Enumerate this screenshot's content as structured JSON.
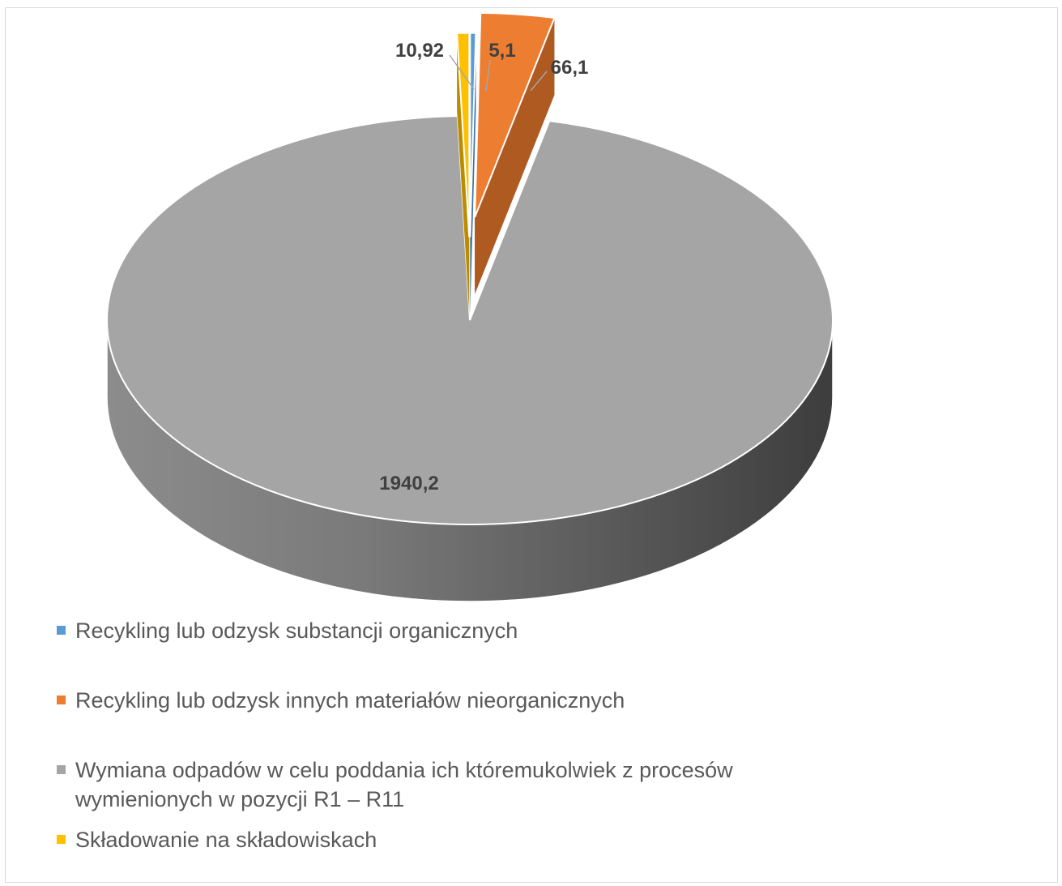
{
  "chart_data": {
    "type": "pie",
    "style": "3d-exploded",
    "categories": [
      "Recykling lub odzysk substancji organicznych",
      "Recykling lub odzysk innych materiałów nieorganicznych",
      "Wymiana odpadów w celu poddania ich któremukolwiek z procesów wymienionych w pozycji R1 – R11",
      "Składowanie na składowiskach"
    ],
    "values": [
      5.1,
      66.1,
      1940.2,
      10.92
    ],
    "data_labels": [
      "5,1",
      "66,1",
      "1940,2",
      "10,92"
    ],
    "colors": [
      "#5b9bd5",
      "#ed7d31",
      "#a5a5a5",
      "#ffc000"
    ],
    "legend_position": "bottom"
  }
}
